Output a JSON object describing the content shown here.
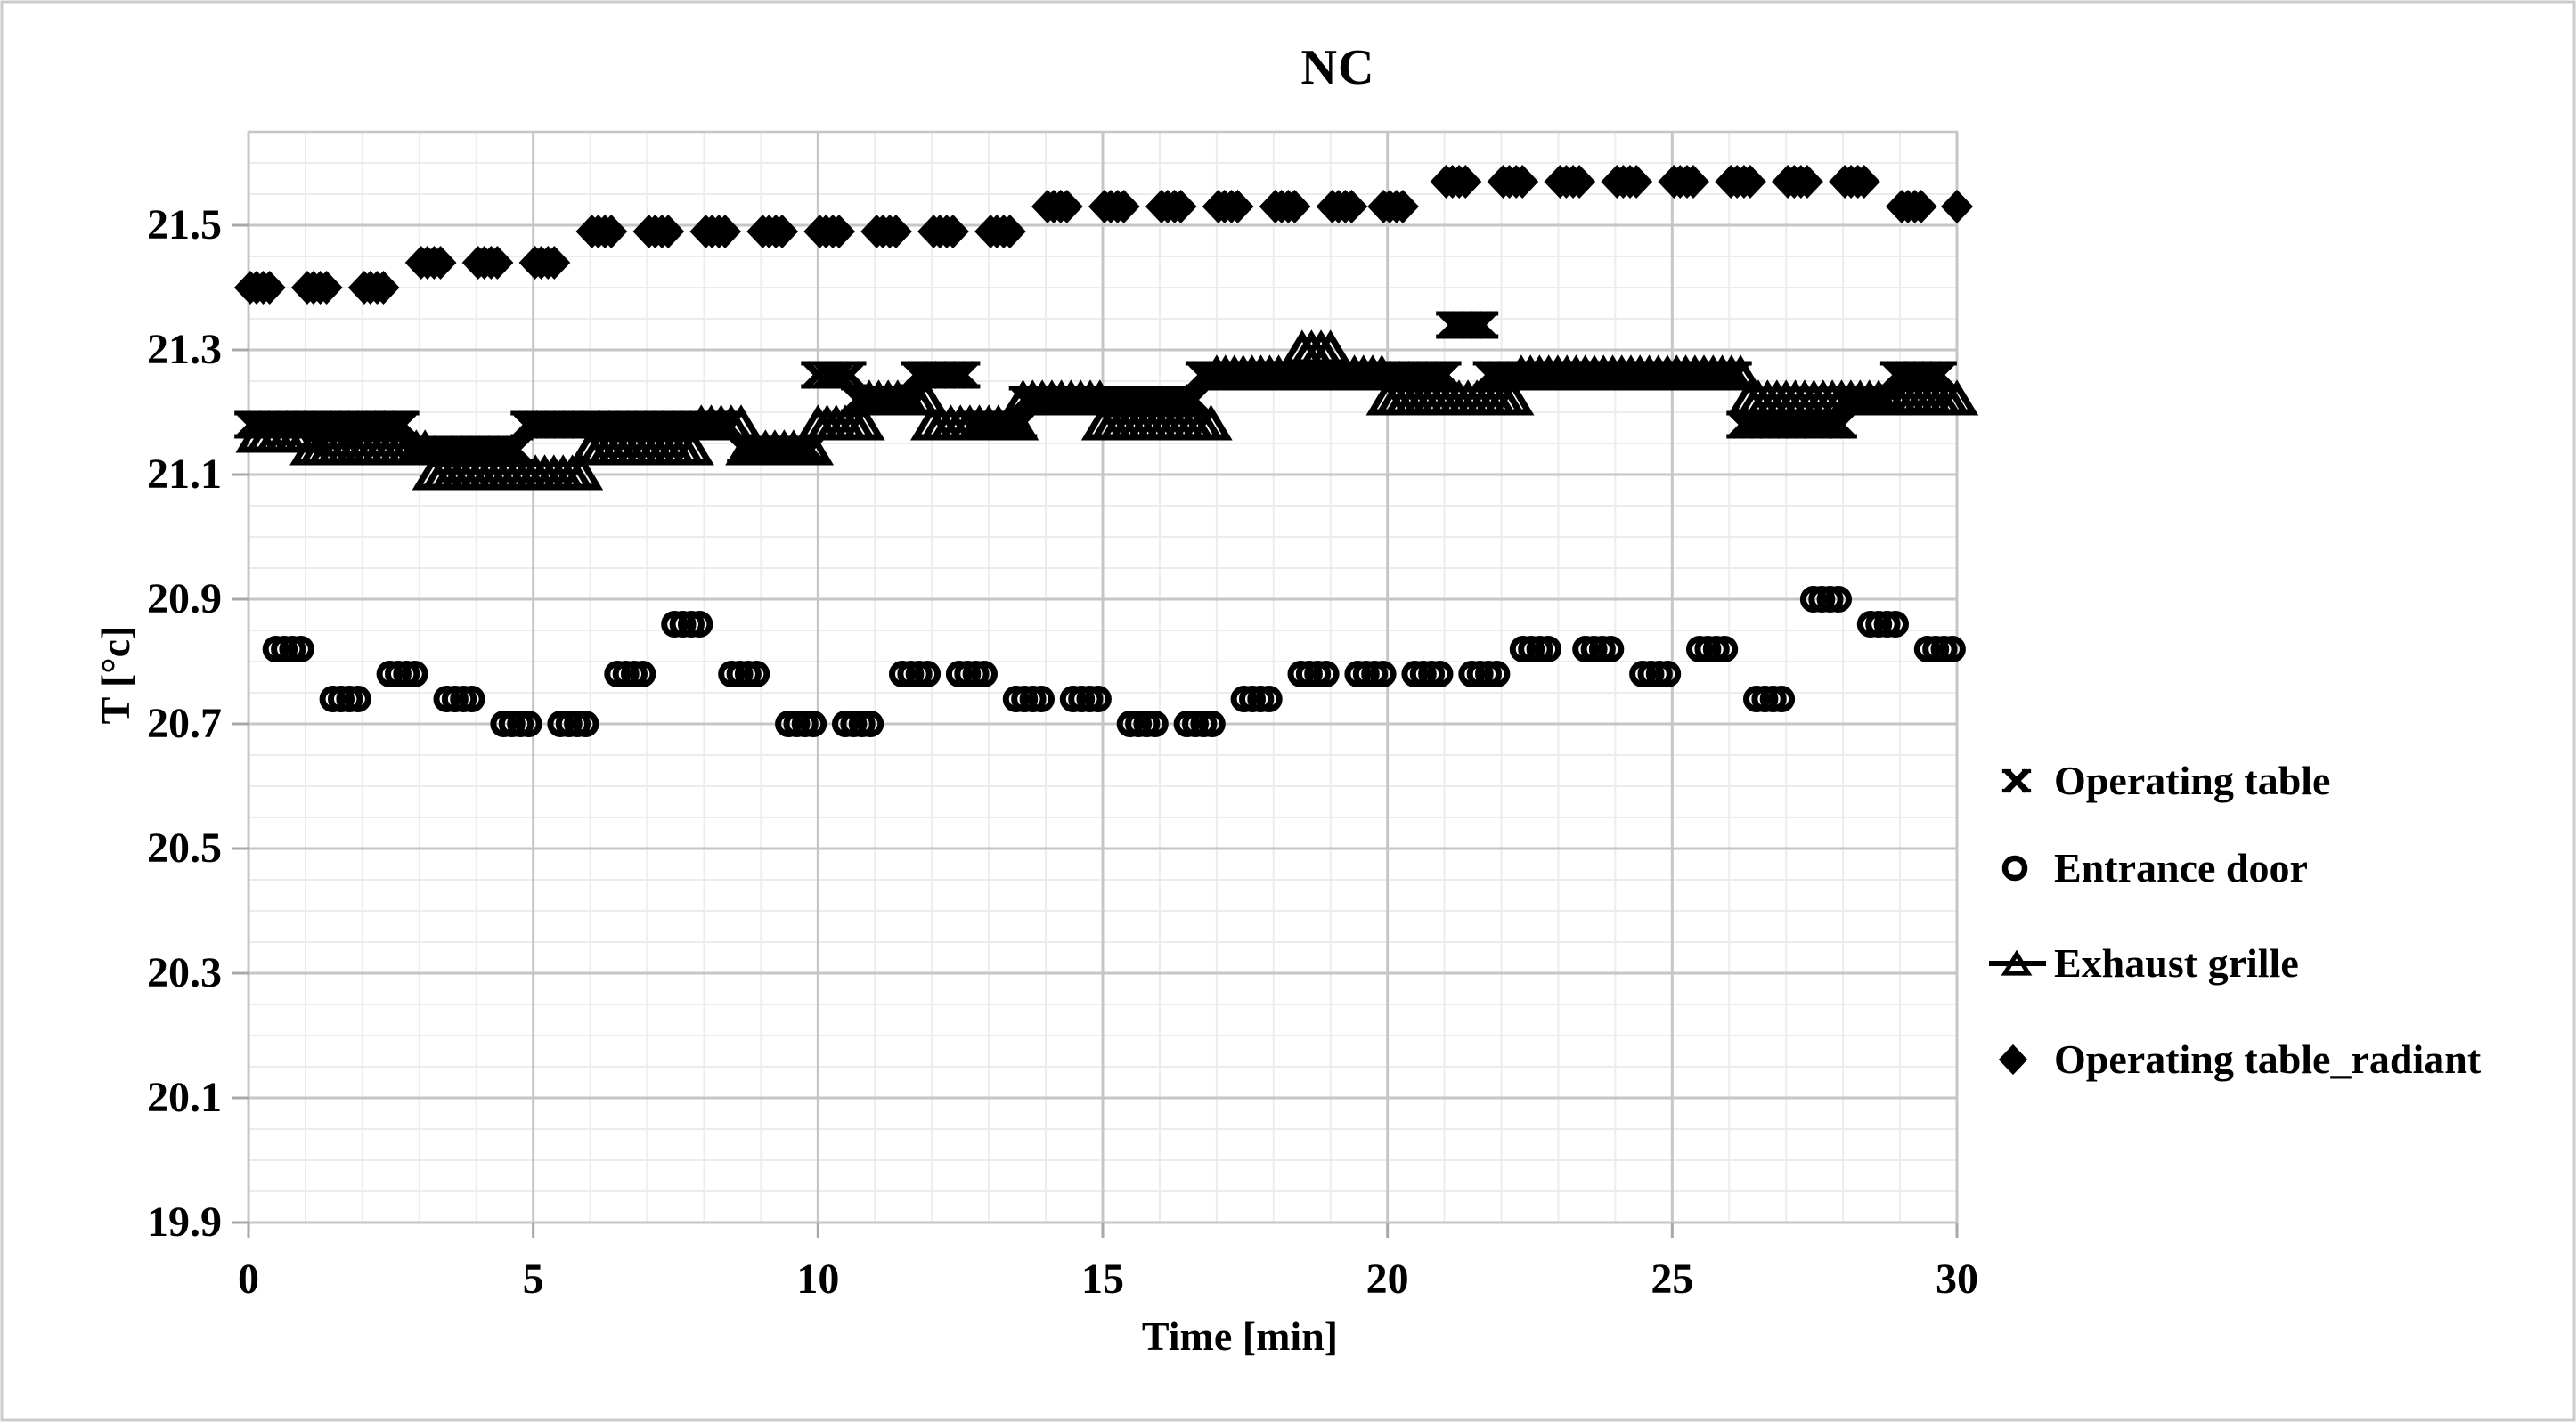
{
  "title": "NC",
  "axes": {
    "x": {
      "label": "Time [min]",
      "min": 0,
      "max": 30,
      "major_tick_step": 5,
      "minor_tick_step": 1,
      "tick_labels": [
        "0",
        "5",
        "10",
        "15",
        "20",
        "25",
        "30"
      ]
    },
    "y": {
      "label": "T [°c]",
      "min": 19.9,
      "max": 21.65,
      "major_tick_step": 0.2,
      "minor_tick_step": 0.05,
      "tick_labels": [
        "21.5",
        "21.3",
        "21.1",
        "20.9",
        "20.7",
        "20.5",
        "20.3",
        "20.1",
        "19.9"
      ]
    }
  },
  "legend": {
    "position": "right",
    "items": [
      {
        "label": "Operating table",
        "marker": "x-cross"
      },
      {
        "label": "Entrance door",
        "marker": "open-circle"
      },
      {
        "label": "Exhaust grille",
        "marker": "open-triangle-line"
      },
      {
        "label": "Operating table_radiant",
        "marker": "filled-diamond"
      }
    ]
  },
  "colors": {
    "marker": "#000000",
    "text": "#000000",
    "grid_minor": "#ececec",
    "grid_major": "#c6c6c6",
    "plot_border": "#c6c6c6",
    "tick_stub": "#a8a8a8",
    "page_border": "#cbcbcb",
    "background": "#ffffff"
  },
  "chart_data": {
    "type": "scatter",
    "title": "NC",
    "xlabel": "Time [min]",
    "ylabel": "T [°c]",
    "xlim": [
      0,
      30
    ],
    "ylim": [
      19.9,
      21.65
    ],
    "grid": true,
    "legend_position": "right",
    "series": [
      {
        "name": "Operating table",
        "marker": "x-cross",
        "points_mode": "segments",
        "segments_format": [
          "t_start_min",
          "t_end_min",
          "T_degC"
        ],
        "segments": [
          [
            0.05,
            2.7,
            21.18
          ],
          [
            2.95,
            4.7,
            21.14
          ],
          [
            4.9,
            8.4,
            21.18
          ],
          [
            8.7,
            9.85,
            21.14
          ],
          [
            10.0,
            10.55,
            21.26
          ],
          [
            10.7,
            11.6,
            21.22
          ],
          [
            11.75,
            12.55,
            21.26
          ],
          [
            12.8,
            13.55,
            21.18
          ],
          [
            13.65,
            16.6,
            21.22
          ],
          [
            16.75,
            21.0,
            21.26
          ],
          [
            21.15,
            21.65,
            21.34
          ],
          [
            21.8,
            26.1,
            21.26
          ],
          [
            26.25,
            27.95,
            21.18
          ],
          [
            28.05,
            28.75,
            21.22
          ],
          [
            28.95,
            29.7,
            21.26
          ]
        ]
      },
      {
        "name": "Entrance door",
        "marker": "open-circle",
        "points_mode": "clusters",
        "clusters_format": [
          "t_center_min",
          "T_degC"
        ],
        "clusters": [
          [
            0.7,
            20.82
          ],
          [
            1.7,
            20.74
          ],
          [
            2.7,
            20.78
          ],
          [
            3.7,
            20.74
          ],
          [
            4.7,
            20.7
          ],
          [
            5.7,
            20.7
          ],
          [
            6.7,
            20.78
          ],
          [
            7.7,
            20.86
          ],
          [
            8.7,
            20.78
          ],
          [
            9.7,
            20.7
          ],
          [
            10.7,
            20.7
          ],
          [
            11.7,
            20.78
          ],
          [
            12.7,
            20.78
          ],
          [
            13.7,
            20.74
          ],
          [
            14.7,
            20.74
          ],
          [
            15.7,
            20.7
          ],
          [
            16.7,
            20.7
          ],
          [
            17.7,
            20.74
          ],
          [
            18.7,
            20.78
          ],
          [
            19.7,
            20.78
          ],
          [
            20.7,
            20.78
          ],
          [
            21.7,
            20.78
          ],
          [
            22.6,
            20.82
          ],
          [
            23.7,
            20.82
          ],
          [
            24.7,
            20.78
          ],
          [
            25.7,
            20.82
          ],
          [
            26.7,
            20.74
          ],
          [
            27.7,
            20.9
          ],
          [
            28.7,
            20.86
          ],
          [
            29.7,
            20.82
          ]
        ]
      },
      {
        "name": "Exhaust grille",
        "marker": "open-triangle",
        "points_mode": "segments",
        "segments_format": [
          "t_start_min",
          "t_end_min",
          "T_degC"
        ],
        "segments": [
          [
            0.15,
            1.0,
            21.16
          ],
          [
            1.1,
            3.1,
            21.14
          ],
          [
            3.25,
            5.85,
            21.1
          ],
          [
            6.0,
            7.8,
            21.14
          ],
          [
            7.95,
            8.65,
            21.18
          ],
          [
            8.75,
            9.9,
            21.14
          ],
          [
            10.0,
            10.8,
            21.18
          ],
          [
            10.9,
            11.9,
            21.22
          ],
          [
            12.0,
            13.5,
            21.18
          ],
          [
            13.6,
            14.95,
            21.22
          ],
          [
            15.0,
            16.9,
            21.18
          ],
          [
            17.0,
            18.4,
            21.26
          ],
          [
            18.5,
            19.0,
            21.3
          ],
          [
            19.1,
            19.9,
            21.26
          ],
          [
            20.0,
            22.2,
            21.22
          ],
          [
            22.35,
            26.2,
            21.26
          ],
          [
            26.35,
            28.95,
            21.22
          ],
          [
            29.1,
            30.0,
            21.22
          ]
        ]
      },
      {
        "name": "Operating table_radiant",
        "marker": "filled-diamond",
        "points_mode": "clusters",
        "clusters_format": [
          "t_center_min",
          "T_degC",
          "n_markers_optional"
        ],
        "clusters": [
          [
            0.2,
            21.4
          ],
          [
            1.2,
            21.4
          ],
          [
            2.2,
            21.4
          ],
          [
            3.2,
            21.44
          ],
          [
            4.2,
            21.44
          ],
          [
            5.2,
            21.44
          ],
          [
            6.2,
            21.49
          ],
          [
            7.2,
            21.49
          ],
          [
            8.2,
            21.49
          ],
          [
            9.2,
            21.49
          ],
          [
            10.2,
            21.49
          ],
          [
            11.2,
            21.49
          ],
          [
            12.2,
            21.49
          ],
          [
            13.2,
            21.49
          ],
          [
            14.2,
            21.53
          ],
          [
            15.2,
            21.53
          ],
          [
            16.2,
            21.53
          ],
          [
            17.2,
            21.53
          ],
          [
            18.2,
            21.53
          ],
          [
            19.2,
            21.53
          ],
          [
            20.1,
            21.53
          ],
          [
            21.2,
            21.57
          ],
          [
            22.2,
            21.57
          ],
          [
            23.2,
            21.57
          ],
          [
            24.2,
            21.57
          ],
          [
            25.2,
            21.57
          ],
          [
            26.2,
            21.57
          ],
          [
            27.2,
            21.57
          ],
          [
            28.2,
            21.57
          ],
          [
            29.2,
            21.53
          ],
          [
            30.0,
            21.53,
            1
          ]
        ]
      }
    ]
  }
}
